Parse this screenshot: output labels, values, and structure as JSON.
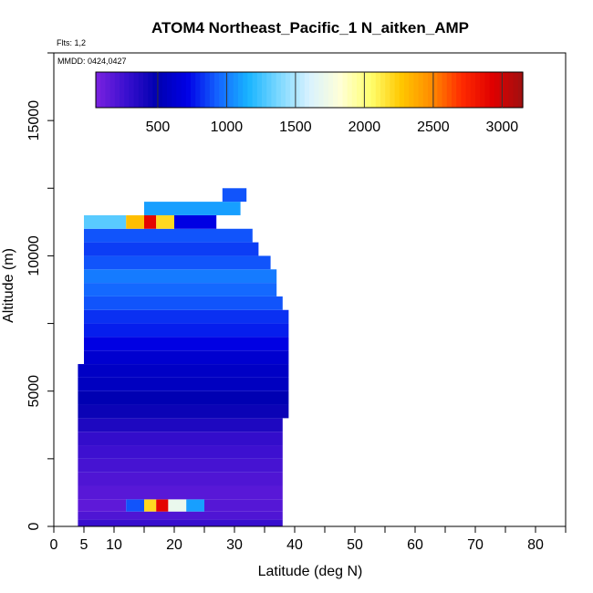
{
  "chart_data": {
    "type": "heatmap",
    "title": "ATOM4 Northeast_Pacific_1 N_aitken_AMP",
    "flights_label": "Flts: 1,2",
    "date_label": "MMDD: 0424,0427",
    "xlabel": "Latitude (deg N)",
    "ylabel": "Altitude (m)",
    "xlim": [
      0,
      85
    ],
    "ylim": [
      0,
      17500
    ],
    "x_ticks": [
      0,
      5,
      10,
      20,
      30,
      40,
      50,
      60,
      70,
      80
    ],
    "y_ticks": [
      0,
      5000,
      10000,
      15000
    ],
    "colorbar": {
      "range": [
        50,
        3150
      ],
      "ticks": [
        500,
        1000,
        1500,
        2000,
        2500,
        3000
      ],
      "colors": [
        "#7b22e0",
        "#3a0fcf",
        "#0000b0",
        "#0000e6",
        "#1464ff",
        "#18b4ff",
        "#7cd8ff",
        "#d8f2ff",
        "#ffffd8",
        "#ffff70",
        "#ffc800",
        "#ff8c00",
        "#ff2a00",
        "#e00000",
        "#a01010"
      ]
    },
    "cells": [
      {
        "lat0": 4,
        "lat1": 38,
        "alt0": 0,
        "alt1": 250,
        "v": 280
      },
      {
        "lat0": 4,
        "lat1": 38,
        "alt0": 250,
        "alt1": 550,
        "v": 200
      },
      {
        "lat0": 4,
        "lat1": 12,
        "alt0": 550,
        "alt1": 1000,
        "v": 150
      },
      {
        "lat0": 12,
        "lat1": 15,
        "alt0": 550,
        "alt1": 1000,
        "v": 900
      },
      {
        "lat0": 15,
        "lat1": 17,
        "alt0": 550,
        "alt1": 1000,
        "v": 2200
      },
      {
        "lat0": 17,
        "lat1": 19,
        "alt0": 550,
        "alt1": 1000,
        "v": 2900
      },
      {
        "lat0": 19,
        "lat1": 22,
        "alt0": 550,
        "alt1": 1000,
        "v": 1700
      },
      {
        "lat0": 22,
        "lat1": 25,
        "alt0": 550,
        "alt1": 1000,
        "v": 1100
      },
      {
        "lat0": 25,
        "lat1": 38,
        "alt0": 550,
        "alt1": 1000,
        "v": 180
      },
      {
        "lat0": 4,
        "lat1": 38,
        "alt0": 1000,
        "alt1": 1500,
        "v": 170
      },
      {
        "lat0": 4,
        "lat1": 38,
        "alt0": 1500,
        "alt1": 2000,
        "v": 200
      },
      {
        "lat0": 4,
        "lat1": 38,
        "alt0": 2000,
        "alt1": 2500,
        "v": 230
      },
      {
        "lat0": 4,
        "lat1": 38,
        "alt0": 2500,
        "alt1": 3000,
        "v": 260
      },
      {
        "lat0": 4,
        "lat1": 38,
        "alt0": 3000,
        "alt1": 3500,
        "v": 300
      },
      {
        "lat0": 4,
        "lat1": 38,
        "alt0": 3500,
        "alt1": 4000,
        "v": 380
      },
      {
        "lat0": 4,
        "lat1": 39,
        "alt0": 4000,
        "alt1": 4500,
        "v": 450
      },
      {
        "lat0": 4,
        "lat1": 39,
        "alt0": 4500,
        "alt1": 5000,
        "v": 500
      },
      {
        "lat0": 4,
        "lat1": 39,
        "alt0": 5000,
        "alt1": 5500,
        "v": 560
      },
      {
        "lat0": 4,
        "lat1": 39,
        "alt0": 5500,
        "alt1": 6000,
        "v": 580
      },
      {
        "lat0": 5,
        "lat1": 39,
        "alt0": 6000,
        "alt1": 6500,
        "v": 620
      },
      {
        "lat0": 5,
        "lat1": 39,
        "alt0": 6500,
        "alt1": 7000,
        "v": 700
      },
      {
        "lat0": 5,
        "lat1": 39,
        "alt0": 7000,
        "alt1": 7500,
        "v": 780
      },
      {
        "lat0": 5,
        "lat1": 39,
        "alt0": 7500,
        "alt1": 8000,
        "v": 820
      },
      {
        "lat0": 5,
        "lat1": 38,
        "alt0": 8000,
        "alt1": 8500,
        "v": 900
      },
      {
        "lat0": 5,
        "lat1": 37,
        "alt0": 8500,
        "alt1": 9000,
        "v": 950
      },
      {
        "lat0": 5,
        "lat1": 37,
        "alt0": 9000,
        "alt1": 9500,
        "v": 1000
      },
      {
        "lat0": 5,
        "lat1": 36,
        "alt0": 9500,
        "alt1": 10000,
        "v": 900
      },
      {
        "lat0": 5,
        "lat1": 34,
        "alt0": 10000,
        "alt1": 10500,
        "v": 850
      },
      {
        "lat0": 5,
        "lat1": 33,
        "alt0": 10500,
        "alt1": 11000,
        "v": 900
      },
      {
        "lat0": 5,
        "lat1": 12,
        "alt0": 11000,
        "alt1": 11500,
        "v": 1300
      },
      {
        "lat0": 12,
        "lat1": 15,
        "alt0": 11000,
        "alt1": 11500,
        "v": 2300
      },
      {
        "lat0": 15,
        "lat1": 17,
        "alt0": 11000,
        "alt1": 11500,
        "v": 2900
      },
      {
        "lat0": 17,
        "lat1": 20,
        "alt0": 11000,
        "alt1": 11500,
        "v": 2200
      },
      {
        "lat0": 20,
        "lat1": 27,
        "alt0": 11000,
        "alt1": 11500,
        "v": 700
      },
      {
        "lat0": 15,
        "lat1": 31,
        "alt0": 11500,
        "alt1": 12000,
        "v": 1100
      },
      {
        "lat0": 28,
        "lat1": 32,
        "alt0": 12000,
        "alt1": 12500,
        "v": 900
      }
    ]
  }
}
